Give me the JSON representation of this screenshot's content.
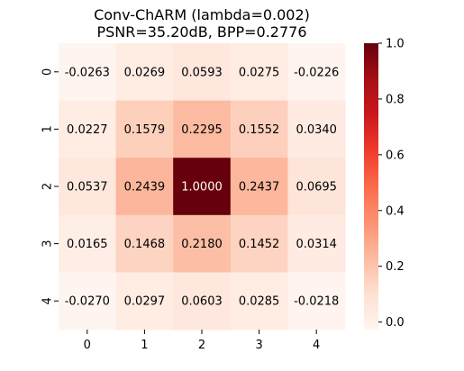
{
  "chart_data": {
    "type": "heatmap",
    "title": "Conv-ChARM (lambda=0.002)",
    "subtitle": "PSNR=35.20dB, BPP=0.2776",
    "x_labels": [
      "0",
      "1",
      "2",
      "3",
      "4"
    ],
    "y_labels": [
      "0",
      "1",
      "2",
      "3",
      "4"
    ],
    "values": [
      [
        -0.0263,
        0.0269,
        0.0593,
        0.0275,
        -0.0226
      ],
      [
        0.0227,
        0.1579,
        0.2295,
        0.1552,
        0.034
      ],
      [
        0.0537,
        0.2439,
        1.0,
        0.2437,
        0.0695
      ],
      [
        0.0165,
        0.1468,
        0.218,
        0.1452,
        0.0314
      ],
      [
        -0.027,
        0.0297,
        0.0603,
        0.0285,
        -0.0218
      ]
    ],
    "value_format": "4 decimals",
    "colormap": "Reds",
    "colorbar": {
      "range": [
        -0.027,
        1.0
      ],
      "ticks": [
        "0.0",
        "0.2",
        "0.4",
        "0.6",
        "0.8",
        "1.0"
      ],
      "tick_values": [
        0.0,
        0.2,
        0.4,
        0.6,
        0.8,
        1.0
      ]
    },
    "grid": false,
    "legend": "colorbar-right"
  }
}
